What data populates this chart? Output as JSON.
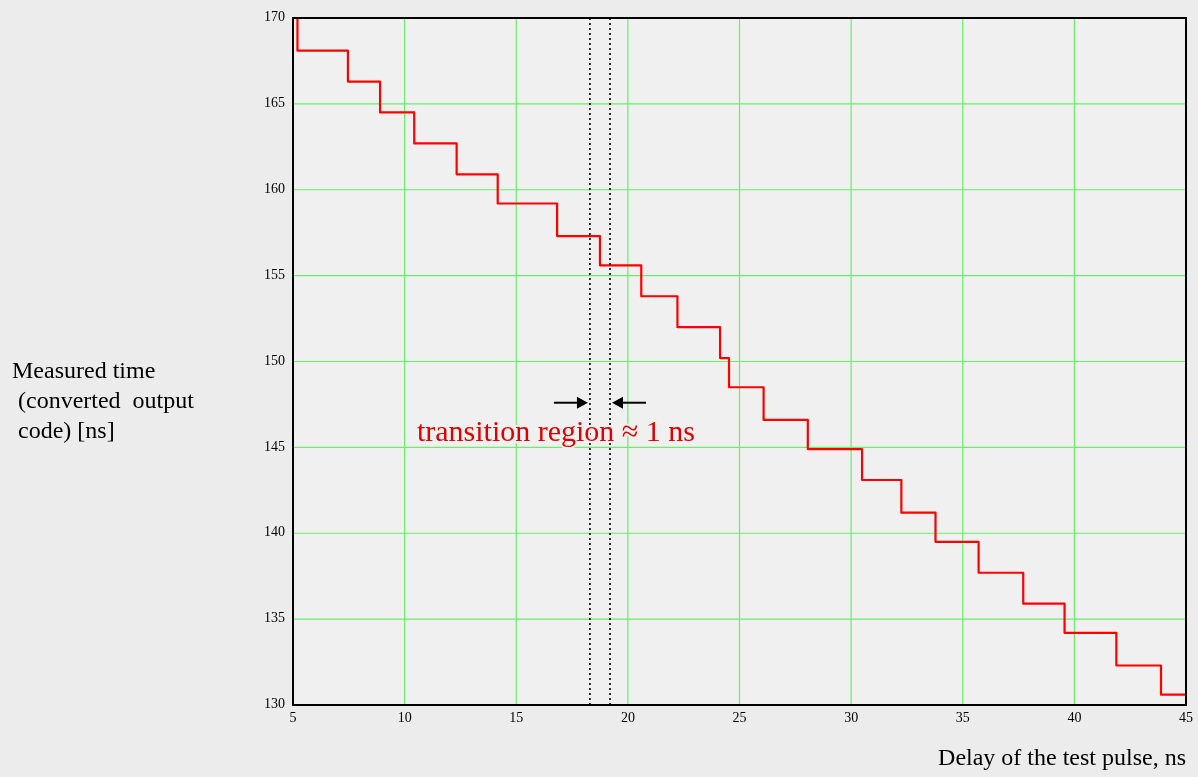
{
  "chart_data": {
    "type": "step",
    "xlabel": "Delay of the test pulse, ns",
    "ylabel": "Measured time\n (converted  output\n code) [ns]",
    "x": [
      5,
      5.2,
      7.46,
      8.9,
      10.43,
      12.33,
      14.17,
      16.83,
      18.75,
      20.6,
      22.22,
      24.13,
      24.53,
      26.08,
      28.06,
      30.49,
      32.25,
      33.78,
      35.71,
      37.71,
      39.56,
      41.88,
      43.88,
      45
    ],
    "series": [
      {
        "color": "#ff0000",
        "values": [
          170,
          168.1,
          166.3,
          164.5,
          162.7,
          160.9,
          159.2,
          157.3,
          155.6,
          153.8,
          152.0,
          150.2,
          148.5,
          146.6,
          144.9,
          143.1,
          141.2,
          139.5,
          137.7,
          135.9,
          134.2,
          132.3,
          130.6,
          130.6
        ]
      }
    ],
    "xlim": [
      5,
      45
    ],
    "xticks": [
      5,
      10,
      15,
      20,
      25,
      30,
      35,
      40,
      45
    ],
    "ylim": [
      130,
      170
    ],
    "yticks": [
      130,
      135,
      140,
      145,
      150,
      155,
      160,
      165,
      170
    ],
    "grid": true,
    "line_style": "solid",
    "marker": "none",
    "ref_lines": [
      {
        "axis": "x",
        "value": 18.3,
        "color": "#000000",
        "line_style": "dotted"
      },
      {
        "axis": "x",
        "value": 19.2,
        "color": "#000000",
        "line_style": "dotted"
      }
    ],
    "annotations": [
      "transition region ≈ 1 ns"
    ]
  }
}
